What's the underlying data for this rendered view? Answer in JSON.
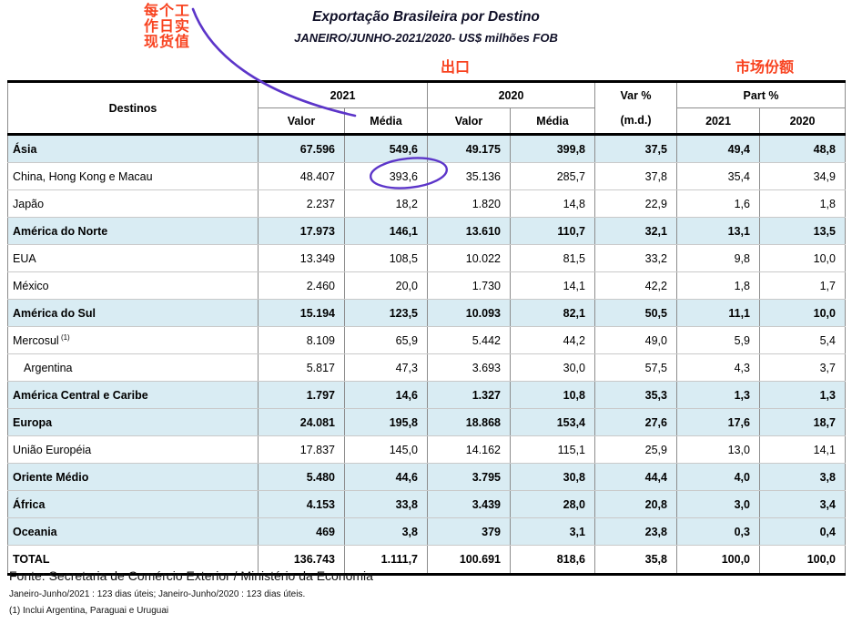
{
  "header": {
    "title": "Exportação Brasileira por Destino",
    "subtitle": "JANEIRO/JUNHO-2021/2020- US$ milhões FOB"
  },
  "annotations": {
    "note_top_left_lines": [
      "每个工",
      "作日实",
      "现货值"
    ],
    "note_top_left_full": "每个工作日实现货值",
    "note_exports": "出口",
    "note_market_share": "市场份额",
    "accent_red": "#f84320",
    "accent_purple": "#5c35c9",
    "circled_value": "393,6"
  },
  "table": {
    "col_destinos": "Destinos",
    "group_2021": "2021",
    "group_2020": "2020",
    "col_valor_2021": "Valor",
    "col_media_2021": "Média",
    "col_valor_2020": "Valor",
    "col_media_2020": "Média",
    "var_line1": "Var %",
    "var_line2": "(m.d.)",
    "group_part": "Part %",
    "part_2021": "2021",
    "part_2020": "2020",
    "highlight_bg": "#d9ecf3",
    "rows": [
      {
        "label": "Ásia",
        "style": "section",
        "values": [
          "67.596",
          "549,6",
          "49.175",
          "399,8",
          "37,5",
          "49,4",
          "48,8"
        ]
      },
      {
        "label": "China, Hong Kong e Macau",
        "style": "plain",
        "values": [
          "48.407",
          "393,6",
          "35.136",
          "285,7",
          "37,8",
          "35,4",
          "34,9"
        ]
      },
      {
        "label": "Japão",
        "style": "plain",
        "values": [
          "2.237",
          "18,2",
          "1.820",
          "14,8",
          "22,9",
          "1,6",
          "1,8"
        ]
      },
      {
        "label": "América do Norte",
        "style": "section",
        "values": [
          "17.973",
          "146,1",
          "13.610",
          "110,7",
          "32,1",
          "13,1",
          "13,5"
        ]
      },
      {
        "label": "EUA",
        "style": "plain",
        "values": [
          "13.349",
          "108,5",
          "10.022",
          "81,5",
          "33,2",
          "9,8",
          "10,0"
        ]
      },
      {
        "label": "México",
        "style": "plain",
        "values": [
          "2.460",
          "20,0",
          "1.730",
          "14,1",
          "42,2",
          "1,8",
          "1,7"
        ]
      },
      {
        "label": "América do Sul",
        "style": "section",
        "values": [
          "15.194",
          "123,5",
          "10.093",
          "82,1",
          "50,5",
          "11,1",
          "10,0"
        ]
      },
      {
        "label": "Mercosul",
        "sup": "(1)",
        "style": "plain",
        "values": [
          "8.109",
          "65,9",
          "5.442",
          "44,2",
          "49,0",
          "5,9",
          "5,4"
        ]
      },
      {
        "label": "Argentina",
        "style": "plain indent",
        "values": [
          "5.817",
          "47,3",
          "3.693",
          "30,0",
          "57,5",
          "4,3",
          "3,7"
        ]
      },
      {
        "label": "América Central e Caribe",
        "style": "section",
        "values": [
          "1.797",
          "14,6",
          "1.327",
          "10,8",
          "35,3",
          "1,3",
          "1,3"
        ]
      },
      {
        "label": "Europa",
        "style": "section",
        "values": [
          "24.081",
          "195,8",
          "18.868",
          "153,4",
          "27,6",
          "17,6",
          "18,7"
        ]
      },
      {
        "label": "União Européia",
        "style": "plain",
        "values": [
          "17.837",
          "145,0",
          "14.162",
          "115,1",
          "25,9",
          "13,0",
          "14,1"
        ]
      },
      {
        "label": "Oriente Médio",
        "style": "section",
        "values": [
          "5.480",
          "44,6",
          "3.795",
          "30,8",
          "44,4",
          "4,0",
          "3,8"
        ]
      },
      {
        "label": "África",
        "style": "section",
        "values": [
          "4.153",
          "33,8",
          "3.439",
          "28,0",
          "20,8",
          "3,0",
          "3,4"
        ]
      },
      {
        "label": "Oceania",
        "style": "section",
        "values": [
          "469",
          "3,8",
          "379",
          "3,1",
          "23,8",
          "0,3",
          "0,4"
        ]
      },
      {
        "label": "TOTAL",
        "style": "total",
        "values": [
          "136.743",
          "1.111,7",
          "100.691",
          "818,6",
          "35,8",
          "100,0",
          "100,0"
        ]
      }
    ]
  },
  "footer": {
    "source": "Fonte: Secretaria de Comércio Exterior / Ministério da Economia",
    "note_days": "Janeiro-Junho/2021 : 123 dias úteis; Janeiro-Junho/2020 : 123 dias úteis.",
    "note_mercosul": "(1) Inclui Argentina, Paraguai e Uruguai"
  }
}
